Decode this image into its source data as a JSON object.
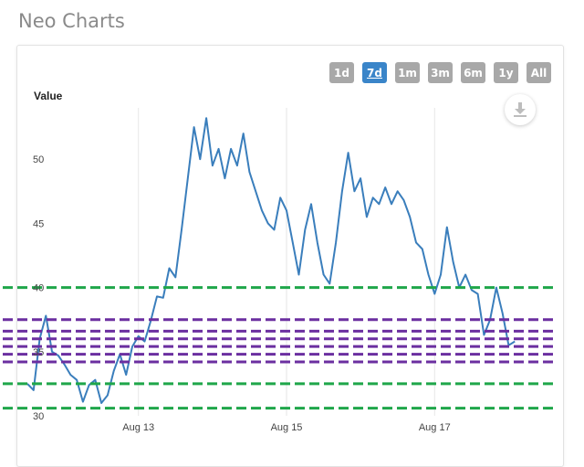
{
  "page": {
    "title": "Neo Charts"
  },
  "range_selector": {
    "buttons": [
      {
        "label": "1d",
        "active": false
      },
      {
        "label": "7d",
        "active": true
      },
      {
        "label": "1m",
        "active": false
      },
      {
        "label": "3m",
        "active": false
      },
      {
        "label": "6m",
        "active": false
      },
      {
        "label": "1y",
        "active": false
      },
      {
        "label": "All",
        "active": false
      }
    ]
  },
  "download": {
    "icon": "download-icon"
  },
  "colors": {
    "series": "#3a7ebc",
    "level_green": "#1fa64a",
    "level_purple": "#6b2fa0",
    "active_button": "#3a85c9",
    "inactive_button": "#a8a8a8"
  },
  "chart_data": {
    "type": "line",
    "ylabel": "Value",
    "xlabel": "",
    "ylim": [
      30,
      54
    ],
    "yticks": [
      30,
      35,
      40,
      45,
      50
    ],
    "x_range": [
      "2016-08-11T12:00",
      "2016-08-18T12:00"
    ],
    "xticks": [
      {
        "label": "Aug 13",
        "date": "2016-08-13"
      },
      {
        "label": "Aug 15",
        "date": "2016-08-15"
      },
      {
        "label": "Aug 17",
        "date": "2016-08-17"
      }
    ],
    "grid": "vertical",
    "series": [
      {
        "values": [
          [
            "2016-08-11T12:00",
            32.5
          ],
          [
            "2016-08-11T14:00",
            32.0
          ],
          [
            "2016-08-11T16:00",
            36.0
          ],
          [
            "2016-08-11T18:00",
            37.8
          ],
          [
            "2016-08-11T20:00",
            35.0
          ],
          [
            "2016-08-11T22:00",
            34.7
          ],
          [
            "2016-08-12T00:00",
            34.0
          ],
          [
            "2016-08-12T02:00",
            33.2
          ],
          [
            "2016-08-12T04:00",
            32.8
          ],
          [
            "2016-08-12T06:00",
            31.1
          ],
          [
            "2016-08-12T08:00",
            32.4
          ],
          [
            "2016-08-12T10:00",
            32.8
          ],
          [
            "2016-08-12T12:00",
            31.0
          ],
          [
            "2016-08-12T14:00",
            31.6
          ],
          [
            "2016-08-12T16:00",
            33.5
          ],
          [
            "2016-08-12T18:00",
            34.8
          ],
          [
            "2016-08-12T20:00",
            33.2
          ],
          [
            "2016-08-12T22:00",
            35.4
          ],
          [
            "2016-08-13T00:00",
            36.2
          ],
          [
            "2016-08-13T02:00",
            35.8
          ],
          [
            "2016-08-13T04:00",
            37.4
          ],
          [
            "2016-08-13T06:00",
            39.3
          ],
          [
            "2016-08-13T08:00",
            39.2
          ],
          [
            "2016-08-13T10:00",
            41.5
          ],
          [
            "2016-08-13T12:00",
            40.8
          ],
          [
            "2016-08-13T14:00",
            44.5
          ],
          [
            "2016-08-13T16:00",
            48.5
          ],
          [
            "2016-08-13T18:00",
            52.5
          ],
          [
            "2016-08-13T20:00",
            50.0
          ],
          [
            "2016-08-13T22:00",
            53.2
          ],
          [
            "2016-08-14T00:00",
            49.5
          ],
          [
            "2016-08-14T02:00",
            50.8
          ],
          [
            "2016-08-14T04:00",
            48.5
          ],
          [
            "2016-08-14T06:00",
            50.8
          ],
          [
            "2016-08-14T08:00",
            49.5
          ],
          [
            "2016-08-14T10:00",
            52.0
          ],
          [
            "2016-08-14T12:00",
            49.0
          ],
          [
            "2016-08-14T14:00",
            47.5
          ],
          [
            "2016-08-14T16:00",
            46.0
          ],
          [
            "2016-08-14T18:00",
            45.0
          ],
          [
            "2016-08-14T20:00",
            44.5
          ],
          [
            "2016-08-14T22:00",
            47.0
          ],
          [
            "2016-08-15T00:00",
            46.0
          ],
          [
            "2016-08-15T02:00",
            43.5
          ],
          [
            "2016-08-15T04:00",
            41.0
          ],
          [
            "2016-08-15T06:00",
            44.5
          ],
          [
            "2016-08-15T08:00",
            46.5
          ],
          [
            "2016-08-15T10:00",
            43.5
          ],
          [
            "2016-08-15T12:00",
            41.0
          ],
          [
            "2016-08-15T14:00",
            40.3
          ],
          [
            "2016-08-15T16:00",
            43.5
          ],
          [
            "2016-08-15T18:00",
            47.5
          ],
          [
            "2016-08-15T20:00",
            50.5
          ],
          [
            "2016-08-15T22:00",
            47.5
          ],
          [
            "2016-08-16T00:00",
            48.5
          ],
          [
            "2016-08-16T02:00",
            45.5
          ],
          [
            "2016-08-16T04:00",
            47.0
          ],
          [
            "2016-08-16T06:00",
            46.5
          ],
          [
            "2016-08-16T08:00",
            47.8
          ],
          [
            "2016-08-16T10:00",
            46.5
          ],
          [
            "2016-08-16T12:00",
            47.5
          ],
          [
            "2016-08-16T14:00",
            46.8
          ],
          [
            "2016-08-16T16:00",
            45.5
          ],
          [
            "2016-08-16T18:00",
            43.5
          ],
          [
            "2016-08-16T20:00",
            43.0
          ],
          [
            "2016-08-16T22:00",
            41.0
          ],
          [
            "2016-08-17T00:00",
            39.5
          ],
          [
            "2016-08-17T02:00",
            41.0
          ],
          [
            "2016-08-17T04:00",
            44.7
          ],
          [
            "2016-08-17T06:00",
            42.0
          ],
          [
            "2016-08-17T08:00",
            40.0
          ],
          [
            "2016-08-17T10:00",
            41.0
          ],
          [
            "2016-08-17T12:00",
            39.8
          ],
          [
            "2016-08-17T14:00",
            39.5
          ],
          [
            "2016-08-17T16:00",
            36.3
          ],
          [
            "2016-08-17T18:00",
            37.5
          ],
          [
            "2016-08-17T20:00",
            40.0
          ],
          [
            "2016-08-17T22:00",
            38.0
          ],
          [
            "2016-08-18T00:00",
            35.5
          ],
          [
            "2016-08-18T02:00",
            35.8
          ]
        ]
      }
    ],
    "horizontal_levels": [
      {
        "value": 40.0,
        "color": "green",
        "style": "dashed"
      },
      {
        "value": 37.5,
        "color": "purple",
        "style": "dashed"
      },
      {
        "value": 36.6,
        "color": "purple",
        "style": "dashed"
      },
      {
        "value": 36.0,
        "color": "purple",
        "style": "dashed"
      },
      {
        "value": 35.4,
        "color": "purple",
        "style": "dashed"
      },
      {
        "value": 34.8,
        "color": "purple",
        "style": "dashed"
      },
      {
        "value": 34.2,
        "color": "purple",
        "style": "dashed"
      },
      {
        "value": 32.5,
        "color": "green",
        "style": "dashed"
      },
      {
        "value": 30.6,
        "color": "green",
        "style": "dashed"
      }
    ]
  }
}
